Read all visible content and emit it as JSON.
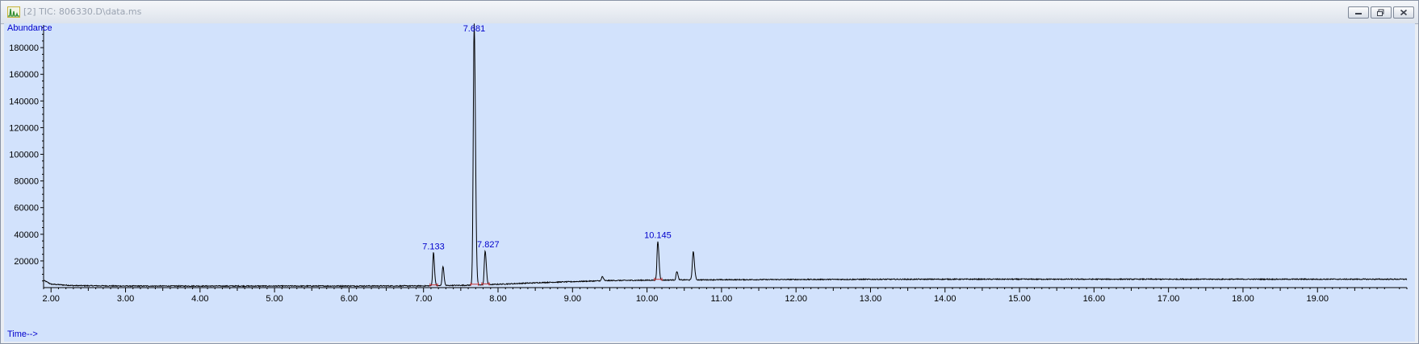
{
  "window": {
    "title": "[2] TIC: 806330.D\\data.ms",
    "buttons": [
      "minimize-icon",
      "restore-icon",
      "close-icon"
    ]
  },
  "colors": {
    "plot_background": "#d2e2fc",
    "trace": "#000000",
    "axis_label": "#0000cc",
    "peak_label": "#0000cc",
    "baseline_marker": "#cc3333"
  },
  "chart_data": {
    "type": "line",
    "ylabel": "Abundance",
    "xlabel": "Time-->",
    "xlim": [
      1.9,
      20.2
    ],
    "ylim": [
      0,
      197000
    ],
    "x_ticks": [
      2.0,
      3.0,
      4.0,
      5.0,
      6.0,
      7.0,
      8.0,
      9.0,
      10.0,
      11.0,
      12.0,
      13.0,
      14.0,
      15.0,
      16.0,
      17.0,
      18.0,
      19.0
    ],
    "x_tick_labels": [
      "2.00",
      "3.00",
      "4.00",
      "5.00",
      "6.00",
      "7.00",
      "8.00",
      "9.00",
      "10.00",
      "11.00",
      "12.00",
      "13.00",
      "14.00",
      "15.00",
      "16.00",
      "17.00",
      "18.00",
      "19.00"
    ],
    "y_ticks": [
      20000,
      40000,
      60000,
      80000,
      100000,
      120000,
      140000,
      160000,
      180000
    ],
    "y_tick_labels": [
      "20000",
      "40000",
      "60000",
      "80000",
      "100000",
      "120000",
      "140000",
      "160000",
      "180000"
    ],
    "grid": false,
    "baseline": [
      [
        1.9,
        5500
      ],
      [
        2.0,
        2600
      ],
      [
        2.3,
        1500
      ],
      [
        3.0,
        1200
      ],
      [
        5.0,
        1200
      ],
      [
        7.0,
        1300
      ],
      [
        7.6,
        1800
      ],
      [
        8.0,
        2500
      ],
      [
        8.6,
        3800
      ],
      [
        9.5,
        5300
      ],
      [
        10.5,
        5800
      ],
      [
        12.0,
        6100
      ],
      [
        14.0,
        6300
      ],
      [
        16.0,
        6300
      ],
      [
        18.0,
        6300
      ],
      [
        20.2,
        6300
      ]
    ],
    "peaks": [
      {
        "rt": 7.133,
        "height": 25000,
        "width": 0.01,
        "label": "7.133"
      },
      {
        "rt": 7.26,
        "height": 14500,
        "width": 0.01,
        "label": ""
      },
      {
        "rt": 7.68,
        "height": 196000,
        "width": 0.012,
        "label": "7.681"
      },
      {
        "rt": 7.827,
        "height": 25500,
        "width": 0.011,
        "label": "7.827"
      },
      {
        "rt": 9.4,
        "height": 3200,
        "width": 0.01,
        "label": ""
      },
      {
        "rt": 10.145,
        "height": 29000,
        "width": 0.011,
        "label": "10.145"
      },
      {
        "rt": 10.4,
        "height": 6500,
        "width": 0.01,
        "label": ""
      },
      {
        "rt": 10.62,
        "height": 21000,
        "width": 0.012,
        "label": ""
      }
    ],
    "labels": {
      "y_axis_name": "Abundance",
      "x_axis_name": "Time-->"
    }
  }
}
